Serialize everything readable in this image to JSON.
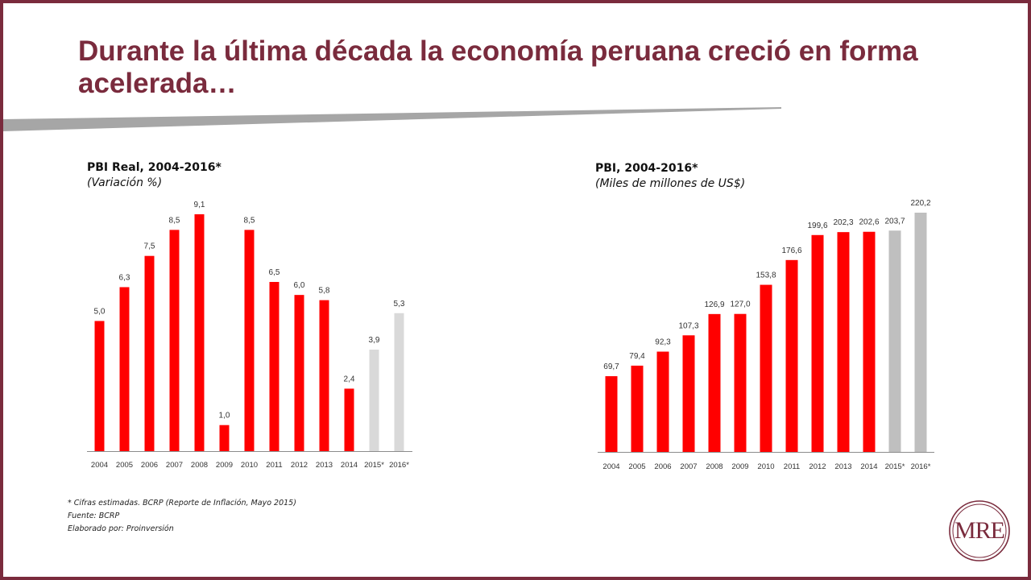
{
  "slide": {
    "title": "Durante la última década la economía peruana creció en forma acelerada…",
    "accent_color": "#7a2b3d",
    "logo_text": "MRE",
    "notes": [
      "* Cifras estimadas. BCRP (Reporte de Inflación, Mayo 2015)",
      "Fuente: BCRP",
      "Elaborado por: Proinversión"
    ]
  },
  "chart_data": [
    {
      "type": "bar",
      "title": "PBI Real, 2004-2016*",
      "subtitle": "(Variación %)",
      "categories": [
        "2004",
        "2005",
        "2006",
        "2007",
        "2008",
        "2009",
        "2010",
        "2011",
        "2012",
        "2013",
        "2014",
        "2015*",
        "2016*"
      ],
      "values": [
        5.0,
        6.3,
        7.5,
        8.5,
        9.1,
        1.0,
        8.5,
        6.5,
        6.0,
        5.8,
        2.4,
        3.9,
        5.3
      ],
      "labels": [
        "5,0",
        "6,3",
        "7,5",
        "8,5",
        "9,1",
        "1,0",
        "8,5",
        "6,5",
        "6,0",
        "5,8",
        "2,4",
        "3,9",
        "5,3"
      ],
      "estimated": [
        false,
        false,
        false,
        false,
        false,
        false,
        false,
        false,
        false,
        false,
        false,
        true,
        true
      ],
      "colors": {
        "actual": "#ff0000",
        "estimated": "#d9d9d9"
      },
      "ylim": [
        0,
        9.1
      ],
      "grid": false,
      "legend": "none"
    },
    {
      "type": "bar",
      "title": "PBI, 2004-2016*",
      "subtitle": "(Miles de millones de US$)",
      "categories": [
        "2004",
        "2005",
        "2006",
        "2007",
        "2008",
        "2009",
        "2010",
        "2011",
        "2012",
        "2013",
        "2014",
        "2015*",
        "2016*"
      ],
      "values": [
        69.7,
        79.4,
        92.3,
        107.3,
        126.9,
        127.0,
        153.8,
        176.6,
        199.6,
        202.3,
        202.6,
        203.7,
        220.2
      ],
      "labels": [
        "69,7",
        "79,4",
        "92,3",
        "107,3",
        "126,9",
        "127,0",
        "153,8",
        "176,6",
        "199,6",
        "202,3",
        "202,6",
        "203,7",
        "220,2"
      ],
      "estimated": [
        false,
        false,
        false,
        false,
        false,
        false,
        false,
        false,
        false,
        false,
        false,
        true,
        true
      ],
      "colors": {
        "actual": "#ff0000",
        "estimated": "#bfbfbf"
      },
      "ylim": [
        0,
        220.2
      ],
      "grid": false,
      "legend": "none"
    }
  ]
}
